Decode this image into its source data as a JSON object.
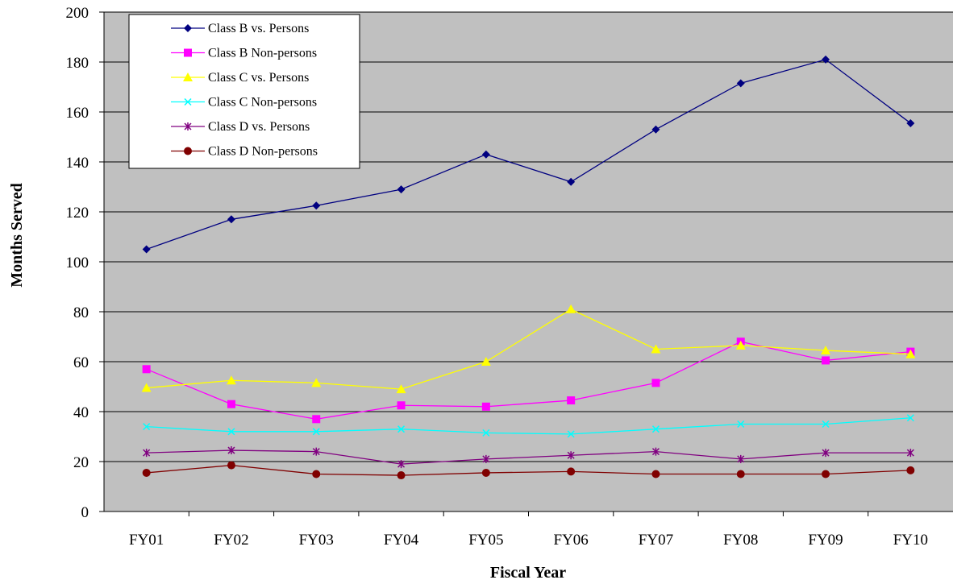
{
  "chart_data": {
    "type": "line",
    "xlabel": "Fiscal Year",
    "ylabel": "Months Served",
    "categories": [
      "FY01",
      "FY02",
      "FY03",
      "FY04",
      "FY05",
      "FY06",
      "FY07",
      "FY08",
      "FY09",
      "FY10"
    ],
    "ylim": [
      0,
      200
    ],
    "yticks": [
      0,
      20,
      40,
      60,
      80,
      100,
      120,
      140,
      160,
      180,
      200
    ],
    "grid": true,
    "legend_position": "top-left",
    "plot_background": "#c0c0c0",
    "series": [
      {
        "name": "Class B vs. Persons",
        "color": "#000080",
        "marker": "diamond",
        "values": [
          105,
          117,
          122.5,
          129,
          143,
          132,
          153,
          171.5,
          181,
          155.5
        ]
      },
      {
        "name": "Class B Non-persons",
        "color": "#ff00ff",
        "marker": "square",
        "values": [
          57,
          43,
          37,
          42.5,
          42,
          44.5,
          51.5,
          68,
          60.5,
          64
        ]
      },
      {
        "name": "Class C vs. Persons",
        "color": "#ffff00",
        "marker": "triangle",
        "values": [
          49.5,
          52.5,
          51.5,
          49,
          60,
          81,
          65,
          66.5,
          64.5,
          63
        ]
      },
      {
        "name": "Class C Non-persons",
        "color": "#00ffff",
        "marker": "x",
        "values": [
          34,
          32,
          32,
          33,
          31.5,
          31,
          33,
          35,
          35,
          37.5
        ]
      },
      {
        "name": "Class D vs. Persons",
        "color": "#800080",
        "marker": "star",
        "values": [
          23.5,
          24.5,
          24,
          19,
          21,
          22.5,
          24,
          21,
          23.5,
          23.5
        ]
      },
      {
        "name": "Class D Non-persons",
        "color": "#800000",
        "marker": "circle",
        "values": [
          15.5,
          18.5,
          15,
          14.5,
          15.5,
          16,
          15,
          15,
          15,
          16.5
        ]
      }
    ]
  }
}
